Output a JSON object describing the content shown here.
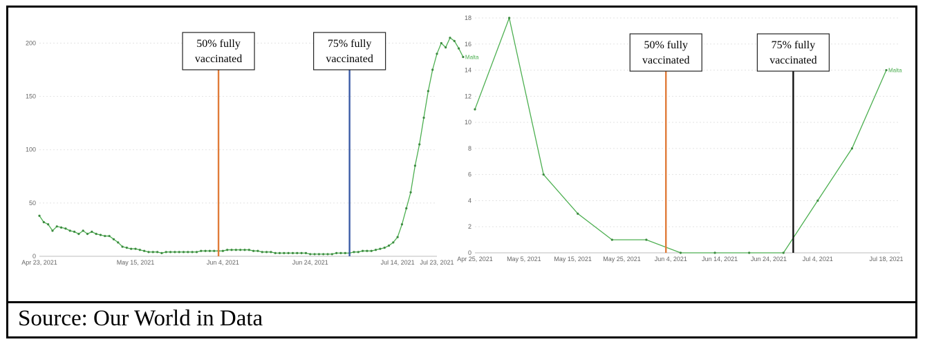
{
  "source_caption": "Source: Our World in Data",
  "chart_data": [
    {
      "type": "line",
      "title": "",
      "xlabel": "",
      "ylabel": "",
      "ylim": [
        0,
        210
      ],
      "yticks": [
        0,
        50,
        100,
        150,
        200
      ],
      "xlim": [
        "Apr 23, 2021",
        "Jul 23, 2021"
      ],
      "xticks": [
        "Apr 23, 2021",
        "May 15, 2021",
        "Jun 4, 2021",
        "Jun 24, 2021",
        "Jul 14, 2021",
        "Jul 23, 2021"
      ],
      "grid": "horizontal dashed",
      "series": [
        {
          "name": "Malta",
          "color": "#4caf50",
          "start_date": "Apr 23, 2021",
          "values": [
            38,
            32,
            30,
            24,
            28,
            27,
            26,
            24,
            23,
            21,
            24,
            21,
            23,
            21,
            20,
            19,
            19,
            16,
            13,
            9,
            8,
            7,
            7,
            6,
            5,
            4,
            4,
            4,
            3,
            4,
            4,
            4,
            4,
            4,
            4,
            4,
            4,
            5,
            5,
            5,
            5,
            5,
            5,
            6,
            6,
            6,
            6,
            6,
            6,
            5,
            5,
            4,
            4,
            4,
            3,
            3,
            3,
            3,
            3,
            3,
            3,
            3,
            2,
            2,
            2,
            2,
            2,
            2,
            3,
            3,
            3,
            3,
            4,
            4,
            5,
            5,
            5,
            6,
            7,
            8,
            10,
            13,
            18,
            30,
            45,
            60,
            85,
            105,
            130,
            155,
            175,
            190,
            200,
            196,
            205,
            202,
            195,
            187
          ]
        }
      ],
      "annotations": [
        {
          "text_line1": "50% fully",
          "text_line2": "vaccinated",
          "date": "Jun 3, 2021",
          "color": "#e07b39"
        },
        {
          "text_line1": "75% fully",
          "text_line2": "vaccinated",
          "date": "Jul 3, 2021",
          "color": "#3b5ba7"
        }
      ]
    },
    {
      "type": "line",
      "title": "",
      "xlabel": "",
      "ylabel": "",
      "ylim": [
        0,
        18
      ],
      "yticks": [
        0,
        2,
        4,
        6,
        8,
        10,
        12,
        14,
        16,
        18
      ],
      "xlim": [
        "Apr 25, 2021",
        "Jul 18, 2021"
      ],
      "xticks": [
        "Apr 25, 2021",
        "May 5, 2021",
        "May 15, 2021",
        "May 25, 2021",
        "Jun 4, 2021",
        "Jun 14, 2021",
        "Jun 24, 2021",
        "Jul 4, 2021",
        "Jul 18, 2021"
      ],
      "grid": "horizontal dashed",
      "series": [
        {
          "name": "Malta",
          "color": "#4caf50",
          "x": [
            "Apr 25, 2021",
            "May 2, 2021",
            "May 9, 2021",
            "May 16, 2021",
            "May 23, 2021",
            "May 30, 2021",
            "Jun 6, 2021",
            "Jun 13, 2021",
            "Jun 20, 2021",
            "Jun 27, 2021",
            "Jul 4, 2021",
            "Jul 11, 2021",
            "Jul 18, 2021"
          ],
          "y": [
            11,
            18,
            6,
            3,
            1,
            1,
            0,
            0,
            0,
            0,
            4,
            8,
            14
          ]
        }
      ],
      "annotations": [
        {
          "text_line1": "50% fully",
          "text_line2": "vaccinated",
          "date": "Jun 3, 2021",
          "color": "#e07b39"
        },
        {
          "text_line1": "75% fully",
          "text_line2": "vaccinated",
          "date": "Jun 29, 2021",
          "color": "#111111"
        }
      ]
    }
  ]
}
